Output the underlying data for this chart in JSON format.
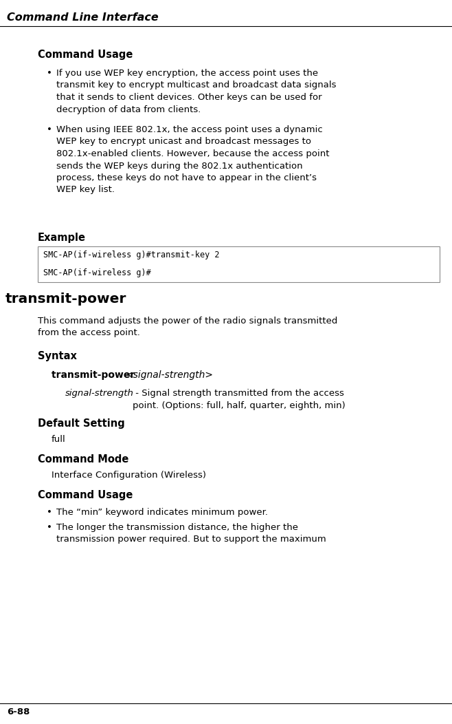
{
  "bg_color": "#ffffff",
  "header_italic": "Command Line Interface",
  "page_number": "6-88",
  "code_lines": [
    "SMC-AP(if-wireless g)#transmit-key 2",
    "SMC-AP(if-wireless g)#"
  ],
  "bullet1": "If you use WEP key encryption, the access point uses the\ntransmit key to encrypt multicast and broadcast data signals\nthat it sends to client devices. Other keys can be used for\ndecryption of data from clients.",
  "bullet2": "When using IEEE 802.1x, the access point uses a dynamic\nWEP key to encrypt unicast and broadcast messages to\n802.1x-enabled clients. However, because the access point\nsends the WEP keys during the 802.1x authentication\nprocess, these keys do not have to appear in the client’s\nWEP key list.",
  "bullet3": "The “min” keyword indicates minimum power.",
  "bullet4": "The longer the transmission distance, the higher the\ntransmission power required. But to support the maximum",
  "desc1": "This command adjusts the power of the radio signals transmitted\nfrom the access point.",
  "param_desc_normal": " - Signal strength transmitted from the access\npoint. (Options: full, half, quarter, eighth, min)",
  "font_size_body": 9.5,
  "font_size_h1": 14.5,
  "font_size_h2": 10.5,
  "font_size_code": 8.5,
  "line_color": "#000000",
  "code_border": "#888888"
}
